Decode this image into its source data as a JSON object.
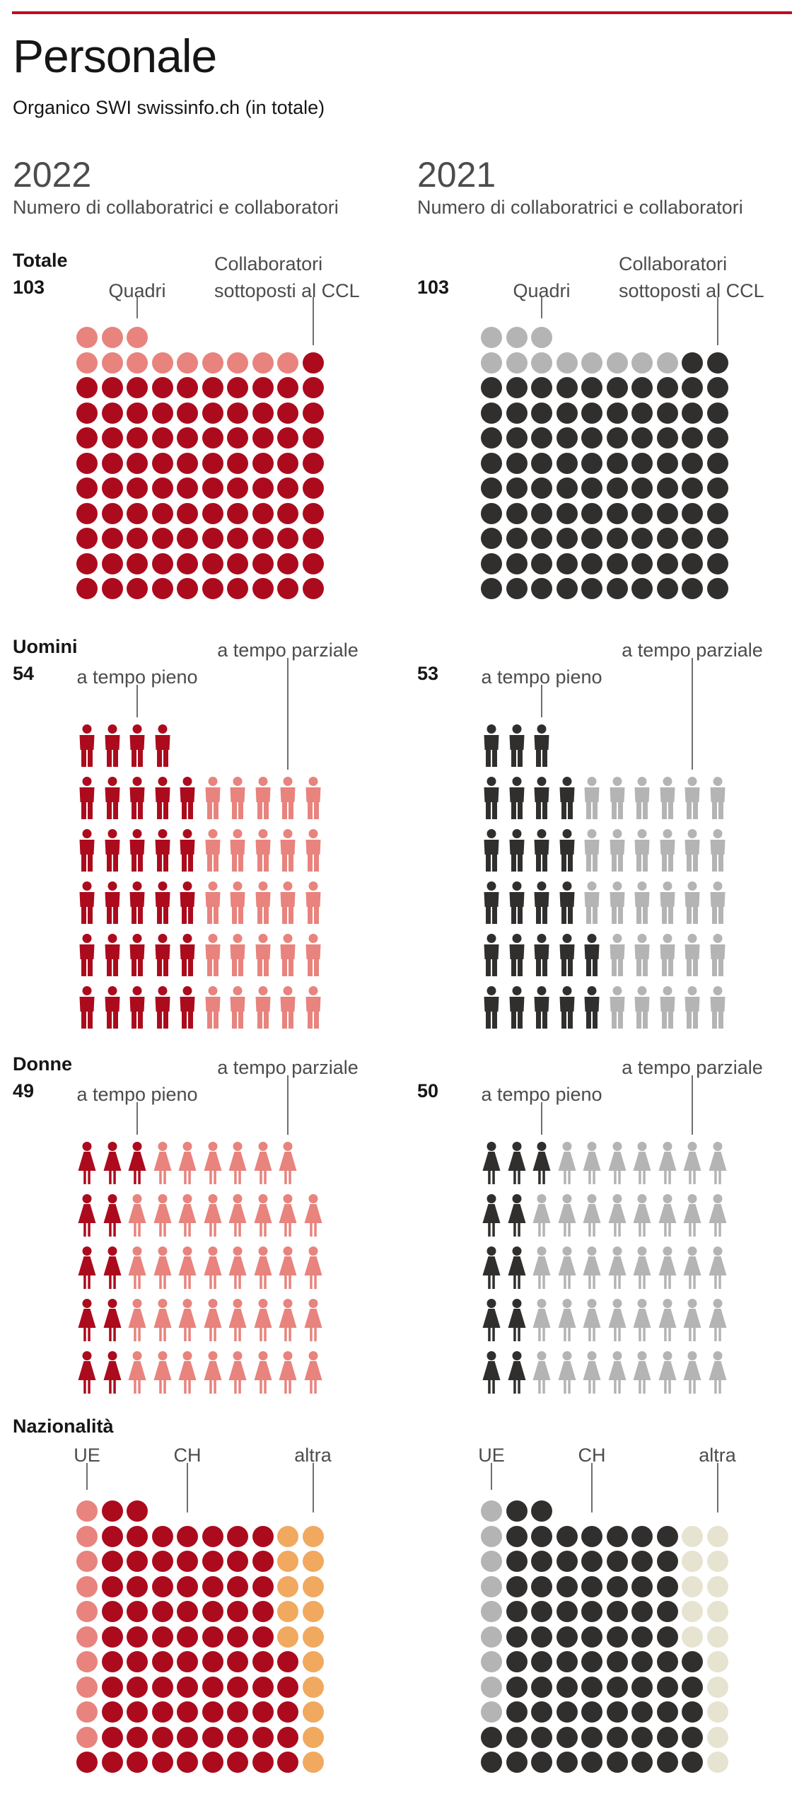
{
  "page": {
    "title": "Personale",
    "subtitle": "Organico SWI swissinfo.ch (in totale)",
    "rule_color": "#c00c20"
  },
  "chart_data": [
    {
      "year": "2022",
      "subtitle": "Numero di collaboratrici e collaboratori",
      "type": "pictogram",
      "unit": "1 symbol = 1 person",
      "colors": {
        "A": "#e8837d",
        "B": "#ac0b1d",
        "C": "#f0a95e"
      },
      "sections": [
        {
          "id": "totale",
          "label": "Totale",
          "value": "103",
          "glyph": "dot",
          "breakdown": [
            {
              "label": "Quadri",
              "count": 12,
              "color": "A"
            },
            {
              "label": "Collaboratori sottoposti al CCL",
              "label_lines": [
                "Collaboratori",
                "sottoposti al CCL"
              ],
              "count": 91,
              "color": "B"
            }
          ],
          "rows": [
            "AAA",
            "AAAAAAAAAB",
            "BBBBBBBBBB",
            "BBBBBBBBBB",
            "BBBBBBBBBB",
            "BBBBBBBBBB",
            "BBBBBBBBBB",
            "BBBBBBBBBB",
            "BBBBBBBBBB",
            "BBBBBBBBBB",
            "BBBBBBBBBB"
          ]
        },
        {
          "id": "uomini",
          "label": "Uomini",
          "value": "54",
          "glyph": "man",
          "breakdown": [
            {
              "label": "a tempo pieno",
              "count": 29,
              "color": "B"
            },
            {
              "label": "a tempo parziale",
              "count": 25,
              "color": "A"
            }
          ],
          "rows": [
            "BBBB",
            "BBBBBAAAAA",
            "BBBBBAAAAA",
            "BBBBBAAAAA",
            "BBBBBAAAAA",
            "BBBBBAAAAA"
          ]
        },
        {
          "id": "donne",
          "label": "Donne",
          "value": "49",
          "glyph": "woman",
          "breakdown": [
            {
              "label": "a tempo pieno",
              "count": 11,
              "color": "B"
            },
            {
              "label": "a tempo parziale",
              "count": 38,
              "color": "A"
            }
          ],
          "rows": [
            "BBBAAAAAA",
            "BBAAAAAAAA",
            "BBAAAAAAAA",
            "BBAAAAAAAA",
            "BBAAAAAAAA"
          ]
        },
        {
          "id": "nazionalita",
          "label": "Nazionalità",
          "value": null,
          "glyph": "dot",
          "breakdown": [
            {
              "label": "UE",
              "count": 10,
              "color": "A"
            },
            {
              "label": "CH",
              "count": 78,
              "color": "B"
            },
            {
              "label": "altra",
              "count": 15,
              "color": "C"
            }
          ],
          "rows": [
            "ABB",
            "ABBBBBBBCC",
            "ABBBBBBBCC",
            "ABBBBBBBCC",
            "ABBBBBBBCC",
            "ABBBBBBBCC",
            "ABBBBBBBBC",
            "ABBBBBBBBC",
            "ABBBBBBBBC",
            "ABBBBBBBBC",
            "BBBBBBBBBC"
          ]
        }
      ]
    },
    {
      "year": "2021",
      "subtitle": "Numero di collaboratrici e collaboratori",
      "type": "pictogram",
      "unit": "1 symbol = 1 person",
      "colors": {
        "A": "#b4b4b4",
        "B": "#312f2e",
        "C": "#e6e3d0"
      },
      "sections": [
        {
          "id": "totale",
          "label": null,
          "value": "103",
          "glyph": "dot",
          "breakdown": [
            {
              "label": "Quadri",
              "count": 11,
              "color": "A"
            },
            {
              "label": "Collaboratori sottoposti al CCL",
              "label_lines": [
                "Collaboratori",
                "sottoposti al CCL"
              ],
              "count": 92,
              "color": "B"
            }
          ],
          "rows": [
            "AAA",
            "AAAAAAAABB",
            "BBBBBBBBBB",
            "BBBBBBBBBB",
            "BBBBBBBBBB",
            "BBBBBBBBBB",
            "BBBBBBBBBB",
            "BBBBBBBBBB",
            "BBBBBBBBBB",
            "BBBBBBBBBB",
            "BBBBBBBBBB"
          ]
        },
        {
          "id": "uomini",
          "label": null,
          "value": "53",
          "glyph": "man",
          "breakdown": [
            {
              "label": "a tempo pieno",
              "count": 25,
              "color": "B"
            },
            {
              "label": "a tempo parziale",
              "count": 28,
              "color": "A"
            }
          ],
          "rows": [
            "BBB",
            "BBBBAAAAAA",
            "BBBBAAAAAA",
            "BBBBAAAAAA",
            "BBBBBAAAAA",
            "BBBBBAAAAA"
          ]
        },
        {
          "id": "donne",
          "label": null,
          "value": "50",
          "glyph": "woman",
          "breakdown": [
            {
              "label": "a tempo pieno",
              "count": 11,
              "color": "B"
            },
            {
              "label": "a tempo parziale",
              "count": 39,
              "color": "A"
            }
          ],
          "rows": [
            "BBBAAAAAAA",
            "BBAAAAAAAA",
            "BBAAAAAAAA",
            "BBAAAAAAAA",
            "BBAAAAAAAA"
          ]
        },
        {
          "id": "nazionalita",
          "label": null,
          "value": null,
          "glyph": "dot",
          "breakdown": [
            {
              "label": "UE",
              "count": 9,
              "color": "A"
            },
            {
              "label": "CH",
              "count": 79,
              "color": "B"
            },
            {
              "label": "altra",
              "count": 15,
              "color": "C"
            }
          ],
          "rows": [
            "ABB",
            "ABBBBBBBCC",
            "ABBBBBBBCC",
            "ABBBBBBBCC",
            "ABBBBBBBCC",
            "ABBBBBBBCC",
            "ABBBBBBBBC",
            "ABBBBBBBBC",
            "ABBBBBBBBC",
            "BBBBBBBBBC",
            "BBBBBBBBBC"
          ]
        }
      ]
    }
  ]
}
